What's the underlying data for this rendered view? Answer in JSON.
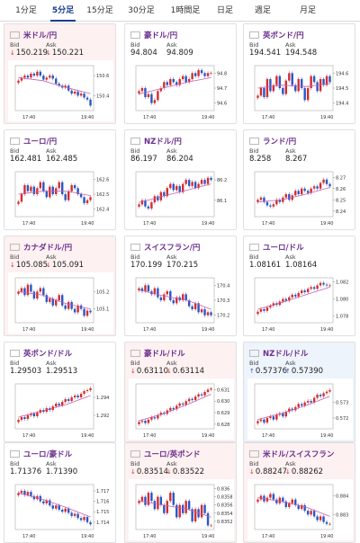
{
  "tabs": [
    {
      "label": "1分足",
      "active": false
    },
    {
      "label": "5分足",
      "active": true
    },
    {
      "label": "15分足",
      "active": false
    },
    {
      "label": "30分足",
      "active": false
    },
    {
      "label": "1時間足",
      "active": false
    },
    {
      "label": "日足",
      "active": false
    },
    {
      "label": "週足",
      "active": false
    },
    {
      "label": "月足",
      "active": false
    }
  ],
  "labels": {
    "bid": "Bid",
    "ask": "Ask"
  },
  "colors": {
    "candle_up": "#d32d2d",
    "candle_down": "#2a56c6",
    "ma_line": "#c85fb0",
    "pair_text": "#6b2e8e"
  },
  "cards": [
    {
      "pair": "米ドル/円",
      "flag": "us",
      "bid": "150.219",
      "ask": "150.221",
      "trend": "down",
      "chart_data": {
        "type": "candlestick",
        "x_ticks": [
          "17:40",
          "19:40"
        ],
        "y_ticks": [
          "150.6",
          "150.4"
        ],
        "y_range": [
          150.25,
          150.7
        ],
        "closes": [
          150.55,
          150.58,
          150.6,
          150.58,
          150.62,
          150.6,
          150.64,
          150.6,
          150.56,
          150.58,
          150.6,
          150.57,
          150.52,
          150.5,
          150.48,
          150.5,
          150.45,
          150.42,
          150.44,
          150.4,
          150.42,
          150.38,
          150.36,
          150.3
        ],
        "ma": [
          150.58,
          150.55,
          150.48,
          150.42
        ]
      }
    },
    {
      "pair": "豪ドル/円",
      "flag": "au",
      "bid": "94.804",
      "ask": "94.809",
      "trend": "flat",
      "chart_data": {
        "type": "candlestick",
        "x_ticks": [
          "17:40",
          "19:40"
        ],
        "y_ticks": [
          "94.8",
          "94.7",
          "94.6"
        ],
        "y_range": [
          94.55,
          94.85
        ],
        "closes": [
          94.68,
          94.7,
          94.64,
          94.66,
          94.6,
          94.62,
          94.68,
          94.7,
          94.74,
          94.72,
          94.76,
          94.74,
          94.72,
          94.76,
          94.78,
          94.74,
          94.76,
          94.8,
          94.78,
          94.82,
          94.8,
          94.78,
          94.8,
          94.8
        ],
        "ma": [
          94.66,
          94.7,
          94.74,
          94.77
        ]
      }
    },
    {
      "pair": "英ポンド/円",
      "flag": "gb",
      "bid": "194.541",
      "ask": "194.548",
      "trend": "flat",
      "chart_data": {
        "type": "candlestick",
        "x_ticks": [
          "17:40",
          "19:40"
        ],
        "y_ticks": [
          "194.6",
          "194.5",
          "194.4"
        ],
        "y_range": [
          194.35,
          194.65
        ],
        "closes": [
          194.45,
          194.5,
          194.44,
          194.56,
          194.48,
          194.52,
          194.58,
          194.5,
          194.46,
          194.55,
          194.6,
          194.52,
          194.48,
          194.56,
          194.5,
          194.42,
          194.5,
          194.58,
          194.54,
          194.48,
          194.56,
          194.52,
          194.58,
          194.54
        ],
        "ma": [
          194.5,
          194.52,
          194.51,
          194.53
        ]
      }
    },
    {
      "pair": "ユーロ/円",
      "flag": "eu",
      "bid": "162.481",
      "ask": "162.485",
      "trend": "flat",
      "chart_data": {
        "type": "candlestick",
        "x_ticks": [
          "17:40",
          "19:40"
        ],
        "y_ticks": [
          "162.6",
          "162.5",
          "162.4"
        ],
        "y_range": [
          162.35,
          162.65
        ],
        "closes": [
          162.45,
          162.5,
          162.56,
          162.52,
          162.55,
          162.5,
          162.54,
          162.58,
          162.52,
          162.48,
          162.55,
          162.5,
          162.54,
          162.58,
          162.5,
          162.46,
          162.52,
          162.56,
          162.54,
          162.5,
          162.48,
          162.44,
          162.46,
          162.48
        ],
        "ma": [
          162.5,
          162.52,
          162.52,
          162.49
        ]
      }
    },
    {
      "pair": "NZドル/円",
      "flag": "nz",
      "bid": "86.197",
      "ask": "86.204",
      "trend": "flat",
      "chart_data": {
        "type": "candlestick",
        "x_ticks": [
          "17:40",
          "19:40"
        ],
        "y_ticks": [
          "86.2",
          "86.1"
        ],
        "y_range": [
          86.02,
          86.24
        ],
        "closes": [
          86.08,
          86.1,
          86.07,
          86.06,
          86.09,
          86.12,
          86.1,
          86.14,
          86.12,
          86.16,
          86.18,
          86.15,
          86.17,
          86.14,
          86.18,
          86.2,
          86.17,
          86.19,
          86.16,
          86.18,
          86.2,
          86.18,
          86.21,
          86.2
        ],
        "ma": [
          86.09,
          86.12,
          86.15,
          86.18
        ]
      }
    },
    {
      "pair": "ランド/円",
      "flag": "za",
      "bid": "8.258",
      "ask": "8.267",
      "trend": "flat",
      "chart_data": {
        "type": "candlestick",
        "x_ticks": [
          "17:40",
          "19:40"
        ],
        "y_ticks": [
          "8.27",
          "8.26",
          "8.25",
          "8.24"
        ],
        "y_range": [
          8.235,
          8.275
        ],
        "closes": [
          8.25,
          8.252,
          8.248,
          8.245,
          8.244,
          8.246,
          8.25,
          8.248,
          8.252,
          8.255,
          8.25,
          8.254,
          8.258,
          8.255,
          8.26,
          8.258,
          8.256,
          8.26,
          8.262,
          8.26,
          8.265,
          8.268,
          8.264,
          8.262
        ],
        "ma": [
          8.248,
          8.25,
          8.255,
          8.261
        ]
      }
    },
    {
      "pair": "カナダドル/円",
      "flag": "ca",
      "bid": "105.085",
      "ask": "105.091",
      "trend": "down",
      "chart_data": {
        "type": "candlestick",
        "x_ticks": [
          "17:40",
          "19:40"
        ],
        "y_ticks": [
          "105.2",
          "105.1"
        ],
        "y_range": [
          105.02,
          105.28
        ],
        "closes": [
          105.2,
          105.22,
          105.18,
          105.24,
          105.2,
          105.16,
          105.2,
          105.22,
          105.18,
          105.14,
          105.16,
          105.12,
          105.15,
          105.18,
          105.12,
          105.1,
          105.14,
          105.1,
          105.08,
          105.12,
          105.1,
          105.06,
          105.09,
          105.08
        ],
        "ma": [
          105.2,
          105.18,
          105.13,
          105.1
        ]
      }
    },
    {
      "pair": "スイスフラン/円",
      "flag": "ch",
      "bid": "170.199",
      "ask": "170.215",
      "trend": "flat",
      "chart_data": {
        "type": "candlestick",
        "x_ticks": [
          "17:40",
          "19:40"
        ],
        "y_ticks": [
          "170.4",
          "170.3",
          "170.2"
        ],
        "y_range": [
          170.15,
          170.45
        ],
        "closes": [
          170.38,
          170.36,
          170.4,
          170.36,
          170.34,
          170.38,
          170.32,
          170.3,
          170.34,
          170.36,
          170.3,
          170.28,
          170.32,
          170.3,
          170.34,
          170.3,
          170.26,
          170.24,
          170.28,
          170.22,
          170.24,
          170.2,
          170.22,
          170.2
        ],
        "ma": [
          170.37,
          170.33,
          170.3,
          170.24
        ]
      }
    },
    {
      "pair": "ユーロ/ドル",
      "flag": "eu",
      "bid": "1.08161",
      "ask": "1.08164",
      "trend": "flat",
      "chart_data": {
        "type": "candlestick",
        "x_ticks": [
          "17:40",
          "19:40"
        ],
        "y_ticks": [
          "1.082",
          "1.080",
          "1.078"
        ],
        "y_range": [
          1.0772,
          1.0825
        ],
        "closes": [
          1.0785,
          1.0788,
          1.0786,
          1.079,
          1.0792,
          1.0795,
          1.0793,
          1.0797,
          1.08,
          1.0798,
          1.0802,
          1.0805,
          1.0803,
          1.0807,
          1.081,
          1.0808,
          1.0812,
          1.0814,
          1.0812,
          1.0816,
          1.0819,
          1.0817,
          1.0816,
          1.0816
        ],
        "ma": [
          1.0788,
          1.0796,
          1.0805,
          1.0814
        ]
      }
    },
    {
      "pair": "英ポンド/ドル",
      "flag": "gb",
      "bid": "1.29503",
      "ask": "1.29513",
      "trend": "flat",
      "chart_data": {
        "type": "candlestick",
        "x_ticks": [
          "17:40",
          "19:40"
        ],
        "y_ticks": [
          "1.294",
          "1.292"
        ],
        "y_range": [
          1.2905,
          1.2955
        ],
        "closes": [
          1.2915,
          1.2918,
          1.2916,
          1.292,
          1.2922,
          1.2919,
          1.2923,
          1.2926,
          1.2924,
          1.2928,
          1.2926,
          1.293,
          1.2933,
          1.2931,
          1.2935,
          1.2938,
          1.2936,
          1.294,
          1.2942,
          1.294,
          1.2944,
          1.2947,
          1.2948,
          1.295
        ],
        "ma": [
          1.2918,
          1.2925,
          1.2932,
          1.2942
        ]
      }
    },
    {
      "pair": "豪ドル/ドル",
      "flag": "au",
      "bid": "0.63110",
      "ask": "0.63114",
      "trend": "down",
      "chart_data": {
        "type": "candlestick",
        "x_ticks": [
          "17:40",
          "19:40"
        ],
        "y_ticks": [
          "0.631",
          "0.630",
          "0.629",
          "0.628"
        ],
        "y_range": [
          0.6276,
          0.6315
        ],
        "closes": [
          0.6282,
          0.6283,
          0.6281,
          0.6284,
          0.6286,
          0.6285,
          0.6288,
          0.629,
          0.6289,
          0.6292,
          0.6294,
          0.6293,
          0.6296,
          0.6298,
          0.6297,
          0.63,
          0.6302,
          0.6301,
          0.6304,
          0.6306,
          0.6305,
          0.6308,
          0.631,
          0.6311
        ],
        "ma": [
          0.6283,
          0.6289,
          0.6297,
          0.6306
        ]
      }
    },
    {
      "pair": "NZドル/ドル",
      "flag": "nz",
      "bid": "0.57376",
      "ask": "0.57390",
      "trend": "up",
      "chart_data": {
        "type": "candlestick",
        "x_ticks": [
          "17:40",
          "19:40"
        ],
        "y_ticks": [
          "0.573",
          "0.572"
        ],
        "y_range": [
          0.5713,
          0.5742
        ],
        "closes": [
          0.5718,
          0.5719,
          0.5717,
          0.572,
          0.5721,
          0.5719,
          0.5722,
          0.5723,
          0.5721,
          0.5724,
          0.5726,
          0.5725,
          0.5727,
          0.5729,
          0.5728,
          0.573,
          0.5731,
          0.573,
          0.5733,
          0.5735,
          0.5734,
          0.5736,
          0.5737,
          0.5738
        ],
        "ma": [
          0.5719,
          0.5723,
          0.5728,
          0.5734
        ]
      }
    },
    {
      "pair": "ユーロ/豪ドル",
      "flag": "eu",
      "bid": "1.71376",
      "ask": "1.71390",
      "trend": "flat",
      "chart_data": {
        "type": "candlestick",
        "x_ticks": [
          "17:40",
          "19:40"
        ],
        "y_ticks": [
          "1.717",
          "1.716",
          "1.715",
          "1.714"
        ],
        "y_range": [
          1.7133,
          1.7176
        ],
        "closes": [
          1.7168,
          1.717,
          1.7166,
          1.7169,
          1.7165,
          1.7162,
          1.7165,
          1.716,
          1.7158,
          1.7161,
          1.7156,
          1.7153,
          1.7156,
          1.7152,
          1.715,
          1.7153,
          1.7149,
          1.7146,
          1.7148,
          1.7144,
          1.7142,
          1.7145,
          1.714,
          1.7138
        ],
        "ma": [
          1.7168,
          1.7162,
          1.7154,
          1.7145
        ]
      }
    },
    {
      "pair": "ユーロ/英ポンド",
      "flag": "eu",
      "bid": "0.83514",
      "ask": "0.83522",
      "trend": "down",
      "chart_data": {
        "type": "candlestick",
        "x_ticks": [
          "17:40",
          "19:40"
        ],
        "y_ticks": [
          "0.836",
          "0.8358",
          "0.8356",
          "0.8354",
          "0.8352"
        ],
        "y_range": [
          0.835,
          0.8361
        ],
        "closes": [
          0.8357,
          0.8358,
          0.8356,
          0.8359,
          0.8357,
          0.8355,
          0.8358,
          0.8356,
          0.8354,
          0.8357,
          0.8359,
          0.8356,
          0.8353,
          0.8356,
          0.8354,
          0.8357,
          0.8355,
          0.8352,
          0.8355,
          0.8353,
          0.8356,
          0.8354,
          0.8351,
          0.8351
        ],
        "ma": [
          0.8357,
          0.8356,
          0.8355,
          0.8353
        ]
      }
    },
    {
      "pair": "米ドル/スイスフラン",
      "flag": "us",
      "bid": "0.88247",
      "ask": "0.88262",
      "trend": "down",
      "chart_data": {
        "type": "candlestick",
        "x_ticks": [
          "17:40",
          "19:40"
        ],
        "y_ticks": [
          "0.884",
          "0.883"
        ],
        "y_range": [
          0.8822,
          0.8846
        ],
        "closes": [
          0.8838,
          0.884,
          0.8837,
          0.8839,
          0.8841,
          0.8838,
          0.8836,
          0.8839,
          0.8837,
          0.8834,
          0.8836,
          0.8838,
          0.8835,
          0.8833,
          0.8835,
          0.8832,
          0.883,
          0.8832,
          0.8829,
          0.8827,
          0.8829,
          0.8826,
          0.8825,
          0.8825
        ],
        "ma": [
          0.8839,
          0.8837,
          0.8834,
          0.8829
        ]
      }
    }
  ]
}
